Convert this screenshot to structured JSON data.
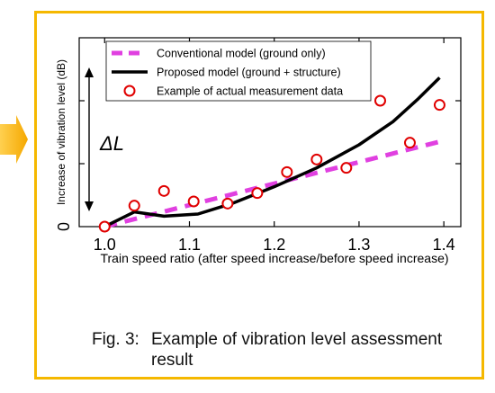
{
  "colors": {
    "accent": "#f5b800",
    "conventional": "#e040e0",
    "proposed": "#000000",
    "measured": "#e00000"
  },
  "chart_data": {
    "type": "line",
    "xlabel": "Train speed ratio (after speed increase/before speed increase)",
    "ylabel": "Increase of vibration level (dB)",
    "xlim": [
      0.97,
      1.42
    ],
    "ylim": [
      0,
      4.5
    ],
    "xticks": [
      "1.0",
      "1.1",
      "1.2",
      "1.3",
      "1.4"
    ],
    "xtick_values": [
      1.0,
      1.1,
      1.2,
      1.3,
      1.4
    ],
    "yticks": [
      "0"
    ],
    "ytick_values": [
      0
    ],
    "grid": false,
    "legend_position": "top-left",
    "annotation": "ΔL",
    "series": [
      {
        "name": "Conventional model (ground only)",
        "style": "dashed",
        "x": [
          1.0,
          1.4
        ],
        "y": [
          0.0,
          2.05
        ]
      },
      {
        "name": "Proposed model (ground + structure)",
        "style": "solid",
        "x": [
          1.0,
          1.035,
          1.07,
          1.11,
          1.15,
          1.2,
          1.25,
          1.3,
          1.34,
          1.37,
          1.395
        ],
        "y": [
          0.0,
          0.35,
          0.25,
          0.3,
          0.55,
          0.95,
          1.4,
          1.95,
          2.5,
          3.05,
          3.55
        ]
      },
      {
        "name": "Example of actual measurement data",
        "style": "markers",
        "x": [
          1.0,
          1.035,
          1.07,
          1.105,
          1.145,
          1.18,
          1.215,
          1.25,
          1.285,
          1.325,
          1.36,
          1.395
        ],
        "y": [
          0.0,
          0.5,
          0.85,
          0.6,
          0.55,
          0.8,
          1.3,
          1.6,
          1.4,
          3.0,
          2.0,
          2.9
        ]
      }
    ]
  },
  "caption": {
    "number": "Fig. 3:",
    "text": "Example of vibration level assessment result"
  }
}
